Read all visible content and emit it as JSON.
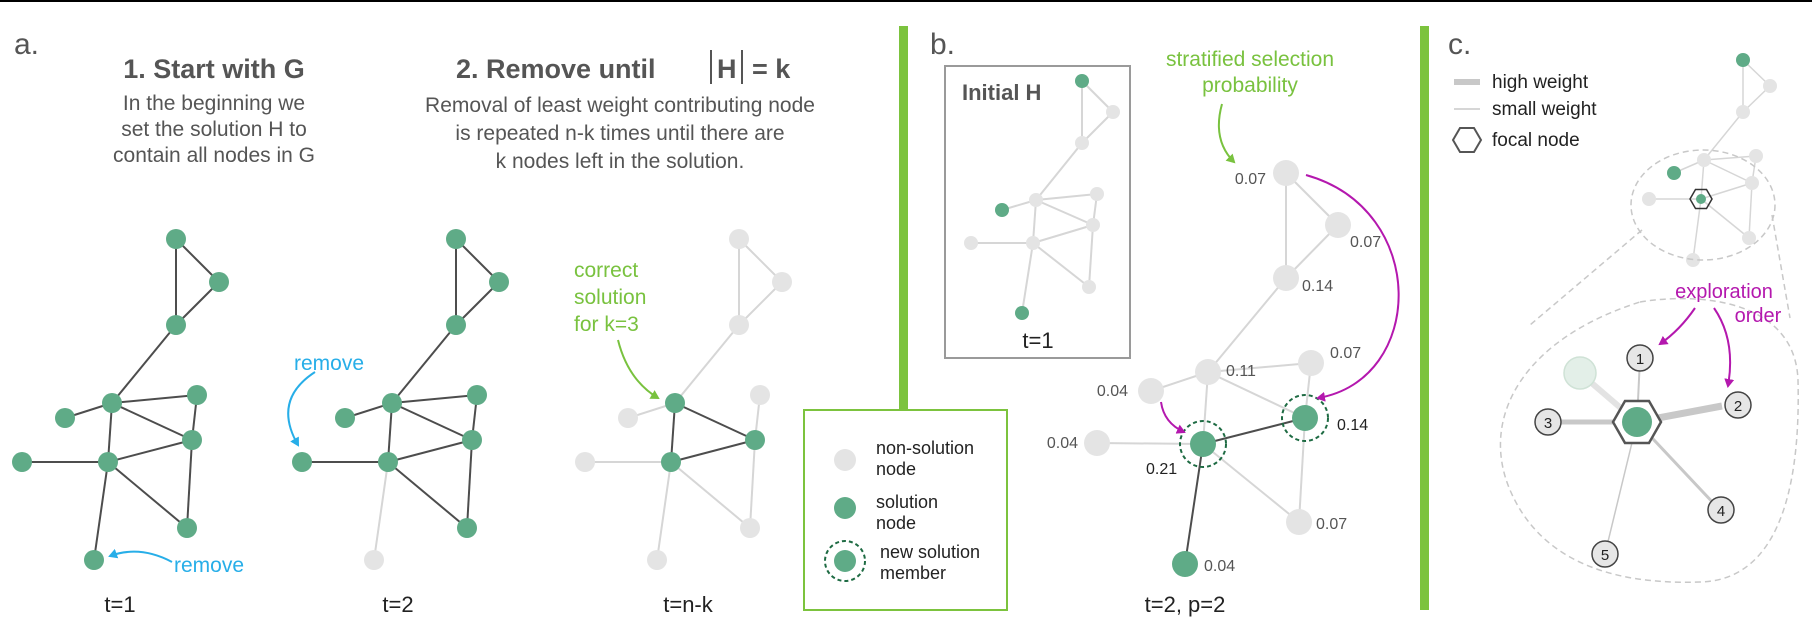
{
  "panels": {
    "a": {
      "label": "a.",
      "step1": {
        "title": "1. Start with G",
        "desc": [
          "In the beginning we",
          "set the solution H to",
          "contain all nodes in G"
        ]
      },
      "step2": {
        "title": "2. Remove until ",
        "title_h": "H",
        "title_k": "= k",
        "desc": [
          "Removal of least weight contributing node",
          "is repeated n-k times until there are",
          "k nodes left in the solution."
        ]
      },
      "remove_label": "remove",
      "remove_label_2": "remove",
      "correct_label": [
        "correct",
        "solution",
        "for k=3"
      ],
      "time_labels": [
        "t=1",
        "t=2",
        "t=n-k"
      ]
    },
    "legend": {
      "items": [
        "non-solution node",
        "solution node",
        "new solution member"
      ],
      "lines": [
        [
          "non-solution",
          "node"
        ],
        [
          "solution",
          "node"
        ],
        [
          "new solution",
          "member"
        ]
      ]
    },
    "b": {
      "label": "b.",
      "inset_title": "Initial H",
      "inset_time": "t=1",
      "selection_label": [
        "stratified selection",
        "probability"
      ],
      "probabilities": [
        "0.07",
        "0.07",
        "0.14",
        "0.07",
        "0.11",
        "0.04",
        "0.04",
        "0.14",
        "0.21",
        "0.07",
        "0.04"
      ],
      "time_label": "t=2, p=2"
    },
    "c": {
      "label": "c.",
      "legend": [
        "high weight",
        "small weight",
        "focal node"
      ],
      "exploration_label": [
        "exploration",
        "order"
      ],
      "order_numbers": [
        "1",
        "2",
        "3",
        "4",
        "5"
      ]
    }
  },
  "colors": {
    "green": "#5fab87",
    "light_gray": "#e4e4e4",
    "dark_edge": "#4d4d4d",
    "blue": "#27aee8",
    "lime": "#79c23f",
    "magenta": "#b418ae",
    "text": "#4a4a4a",
    "bar": "#7cc33e"
  }
}
